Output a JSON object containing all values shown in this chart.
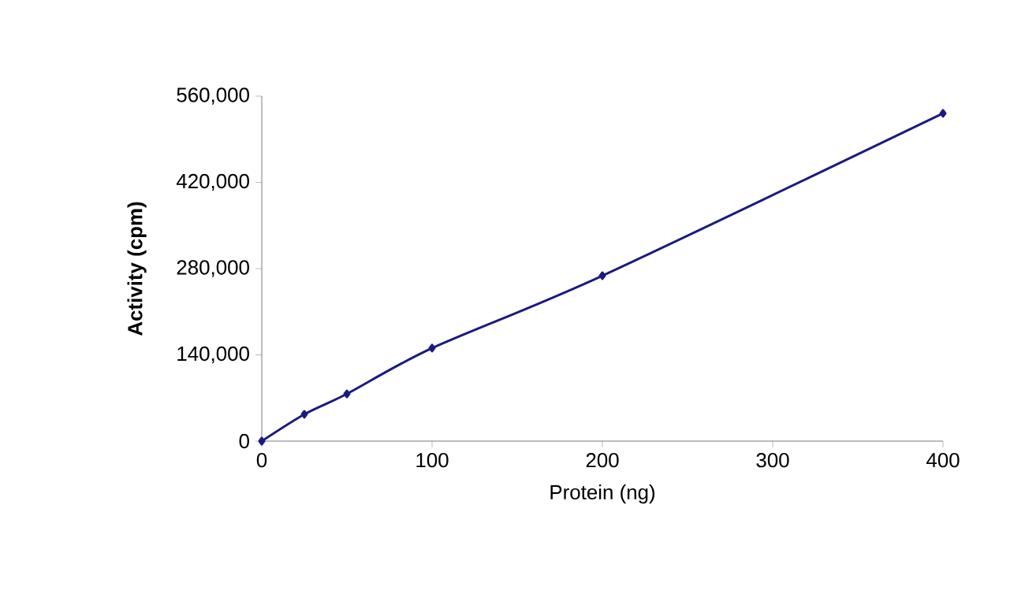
{
  "chart_data": {
    "type": "line",
    "xlabel": "Protein (ng)",
    "ylabel": "Activity (cpm)",
    "x": [
      0,
      25,
      50,
      100,
      200,
      400
    ],
    "values": [
      0,
      43500,
      76700,
      151000,
      268500,
      532000
    ],
    "color": "#1a1a80",
    "marker": "diamond",
    "line_style": "solid",
    "xlim": [
      0,
      400
    ],
    "ylim": [
      0,
      560000
    ],
    "xticks": [
      0,
      100,
      200,
      300,
      400
    ],
    "yticks": [
      0,
      {
        "value": 140000,
        "label": "140,000"
      },
      {
        "value": 280000,
        "label": "280,000"
      },
      {
        "value": 420000,
        "label": "420,000"
      },
      {
        "value": 560000,
        "label": "560,000"
      }
    ]
  }
}
